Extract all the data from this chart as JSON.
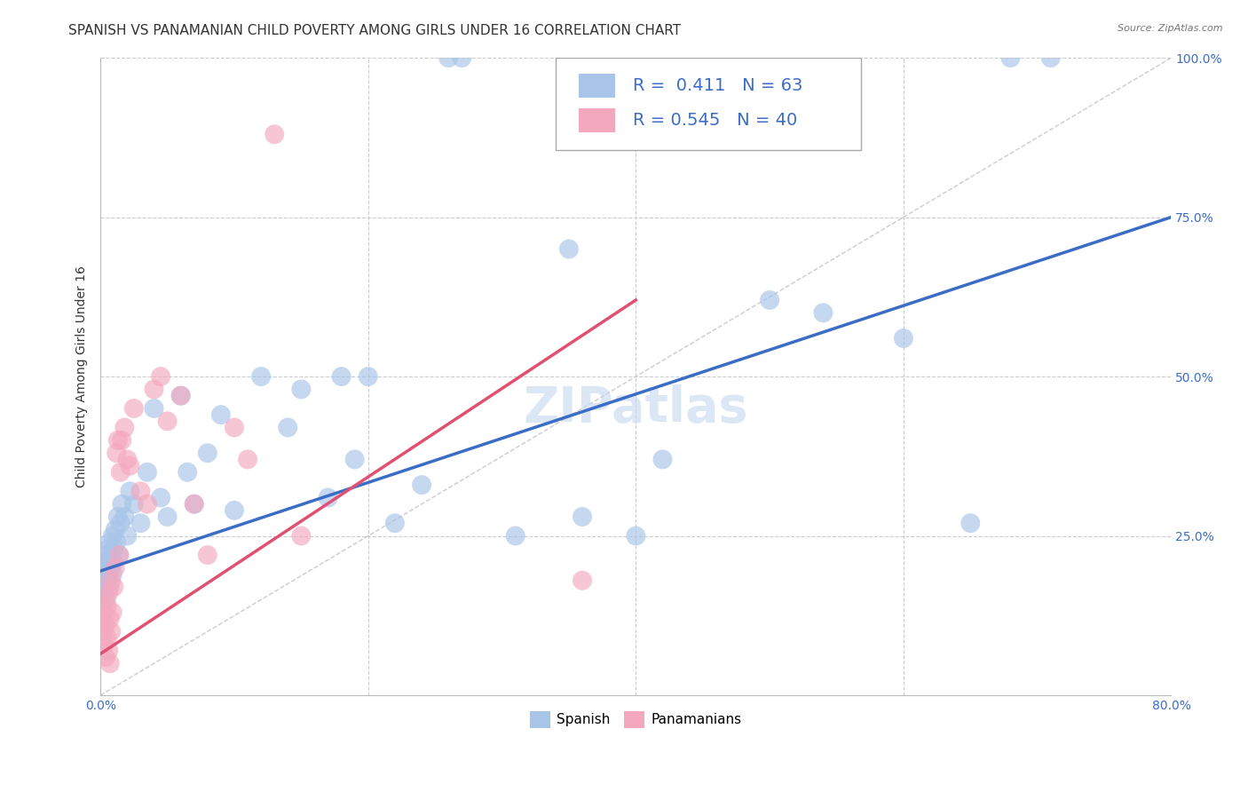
{
  "title": "SPANISH VS PANAMANIAN CHILD POVERTY AMONG GIRLS UNDER 16 CORRELATION CHART",
  "source": "Source: ZipAtlas.com",
  "ylabel": "Child Poverty Among Girls Under 16",
  "xlim": [
    0,
    0.8
  ],
  "ylim": [
    0,
    1.0
  ],
  "watermark": "ZIPatlas",
  "spanish_color": "#a8c4e8",
  "panamanian_color": "#f4a8be",
  "spanish_R": 0.411,
  "spanish_N": 63,
  "panamanian_R": 0.545,
  "panamanian_N": 40,
  "spanish_line_color": "#3b6dc7",
  "panamanian_line_color": "#e05070",
  "ref_line_color": "#cccccc",
  "grid_color": "#cccccc",
  "tick_color": "#3b6dc7",
  "title_color": "#333333",
  "ylabel_color": "#333333",
  "spanish_x": [
    0.001,
    0.002,
    0.002,
    0.003,
    0.003,
    0.003,
    0.004,
    0.004,
    0.005,
    0.005,
    0.006,
    0.006,
    0.007,
    0.007,
    0.008,
    0.008,
    0.009,
    0.009,
    0.01,
    0.01,
    0.011,
    0.012,
    0.013,
    0.014,
    0.015,
    0.016,
    0.018,
    0.02,
    0.022,
    0.025,
    0.03,
    0.035,
    0.04,
    0.045,
    0.05,
    0.06,
    0.065,
    0.07,
    0.08,
    0.09,
    0.1,
    0.12,
    0.14,
    0.15,
    0.17,
    0.18,
    0.19,
    0.2,
    0.22,
    0.24,
    0.26,
    0.27,
    0.31,
    0.35,
    0.36,
    0.4,
    0.42,
    0.5,
    0.54,
    0.6,
    0.65,
    0.68,
    0.71
  ],
  "spanish_y": [
    0.2,
    0.17,
    0.19,
    0.16,
    0.18,
    0.2,
    0.15,
    0.22,
    0.18,
    0.21,
    0.19,
    0.23,
    0.17,
    0.24,
    0.2,
    0.22,
    0.19,
    0.25,
    0.21,
    0.23,
    0.26,
    0.24,
    0.28,
    0.22,
    0.27,
    0.3,
    0.28,
    0.25,
    0.32,
    0.3,
    0.27,
    0.35,
    0.45,
    0.31,
    0.28,
    0.47,
    0.35,
    0.3,
    0.38,
    0.44,
    0.29,
    0.5,
    0.42,
    0.48,
    0.31,
    0.5,
    0.37,
    0.5,
    0.27,
    0.33,
    1.0,
    1.0,
    0.25,
    0.7,
    0.28,
    0.25,
    0.37,
    0.62,
    0.6,
    0.56,
    0.27,
    1.0,
    1.0
  ],
  "panamanian_x": [
    0.001,
    0.002,
    0.002,
    0.003,
    0.003,
    0.004,
    0.004,
    0.005,
    0.005,
    0.006,
    0.006,
    0.007,
    0.007,
    0.008,
    0.008,
    0.009,
    0.01,
    0.011,
    0.012,
    0.013,
    0.014,
    0.015,
    0.016,
    0.018,
    0.02,
    0.022,
    0.025,
    0.03,
    0.035,
    0.04,
    0.045,
    0.05,
    0.06,
    0.07,
    0.08,
    0.1,
    0.11,
    0.13,
    0.15,
    0.36
  ],
  "panamanian_y": [
    0.12,
    0.1,
    0.15,
    0.08,
    0.13,
    0.06,
    0.11,
    0.14,
    0.09,
    0.16,
    0.07,
    0.12,
    0.05,
    0.18,
    0.1,
    0.13,
    0.17,
    0.2,
    0.38,
    0.4,
    0.22,
    0.35,
    0.4,
    0.42,
    0.37,
    0.36,
    0.45,
    0.32,
    0.3,
    0.48,
    0.5,
    0.43,
    0.47,
    0.3,
    0.22,
    0.42,
    0.37,
    0.88,
    0.25,
    0.18
  ],
  "title_fontsize": 11,
  "axis_label_fontsize": 10,
  "tick_fontsize": 10,
  "legend_fontsize": 14,
  "watermark_fontsize": 40,
  "spanish_line_x0": 0.0,
  "spanish_line_y0": 0.195,
  "spanish_line_x1": 0.8,
  "spanish_line_y1": 0.75,
  "panamanian_line_x0": 0.0,
  "panamanian_line_y0": 0.065,
  "panamanian_line_x1": 0.4,
  "panamanian_line_y1": 0.62
}
